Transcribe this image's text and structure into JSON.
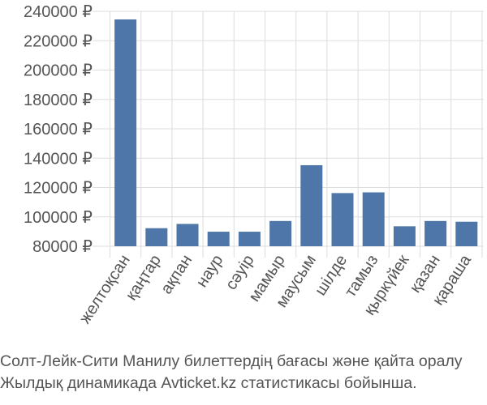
{
  "chart_data": {
    "type": "bar",
    "categories": [
      "желтоқсан",
      "қаңтар",
      "ақпан",
      "наур",
      "сәуір",
      "мамыр",
      "маусым",
      "шілде",
      "тамыз",
      "қыркүйек",
      "қазан",
      "қараша"
    ],
    "values": [
      234500,
      92300,
      95200,
      89900,
      89900,
      97200,
      135200,
      116200,
      116700,
      93600,
      97200,
      96700
    ],
    "ylim": [
      80000,
      240000
    ],
    "yticks": [
      "80000 ₽",
      "100000 ₽",
      "120000 ₽",
      "140000 ₽",
      "160000 ₽",
      "180000 ₽",
      "200000 ₽",
      "220000 ₽",
      "240000 ₽"
    ],
    "ytick_values": [
      80000,
      100000,
      120000,
      140000,
      160000,
      180000,
      200000,
      220000,
      240000
    ],
    "grid": true,
    "bar_color": "#4f76a8",
    "grid_color": "#dddddd"
  },
  "caption": {
    "line1": "Солт-Лейк-Сити Манилу билеттердің бағасы және қайта оралу",
    "line2": "Жылдық динамикада Avticket.kz статистикасы бойынша."
  }
}
